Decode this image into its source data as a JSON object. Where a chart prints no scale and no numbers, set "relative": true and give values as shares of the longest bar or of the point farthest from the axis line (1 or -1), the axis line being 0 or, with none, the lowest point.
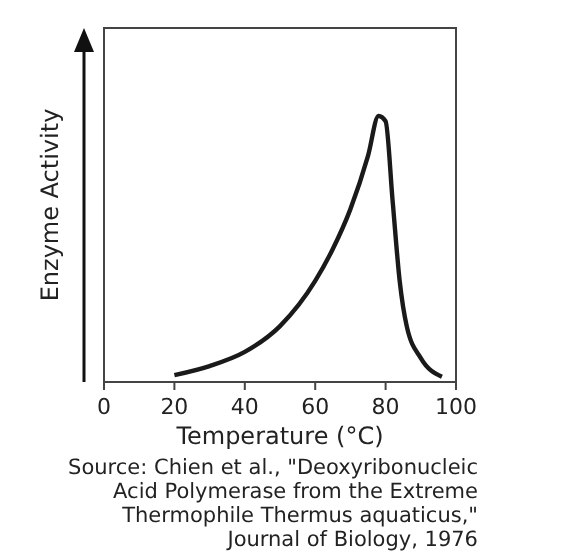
{
  "chart_data": {
    "type": "line",
    "xlabel": "Temperature (°C)",
    "ylabel": "Enzyme Activity",
    "relative": true,
    "x": [
      20,
      30,
      40,
      50,
      60,
      65,
      70,
      75,
      78,
      80,
      82,
      84,
      86,
      90,
      96
    ],
    "series": [
      {
        "color": "#1a1a1a",
        "values": [
          0.026,
          0.06,
          0.113,
          0.21,
          0.38,
          0.5,
          0.65,
          0.85,
          1,
          0.98,
          0.68,
          0.38,
          0.21,
          0.09,
          0.02
        ]
      }
    ],
    "xlim": [
      0,
      100
    ],
    "xticks": [
      0,
      20,
      40,
      60,
      80,
      100
    ],
    "grid": false,
    "marker": "none",
    "line_style": "solid",
    "annotations": [
      "Source: Chien et al., \"Deoxyribonucleic Acid Polymerase from the Extreme Thermophile Thermus aquaticus,\" Journal of Biology, 1976"
    ]
  }
}
